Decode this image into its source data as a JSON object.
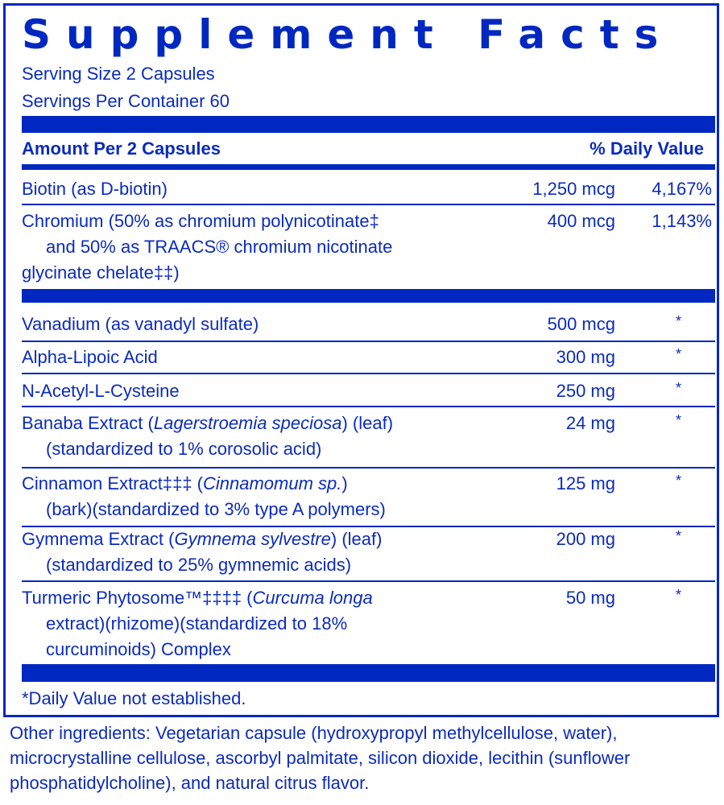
{
  "title": "Supplement Facts",
  "serving_size": "Serving Size 2 Capsules",
  "servings_per_container": "Servings Per Container 60",
  "header": {
    "amount": "Amount Per 2 Capsules",
    "dv": "% Daily Value"
  },
  "colors": {
    "label_blue": "#0028c0"
  },
  "rows": [
    {
      "l1": "Biotin (as D-biotin)",
      "amount": "1,250 mcg",
      "dv": "4,167%"
    },
    {
      "l1": "Chromium (50% as chromium polynicotinate‡",
      "l2": "and 50% as TRAACS® chromium nicotinate",
      "l3": "glycinate chelate‡‡)",
      "amount": "400 mcg",
      "dv": "1,143%"
    },
    {
      "l1": "Vanadium (as vanadyl sulfate)",
      "amount": "500 mcg",
      "dv": "*"
    },
    {
      "l1": "Alpha-Lipoic Acid",
      "amount": "300 mg",
      "dv": "*"
    },
    {
      "l1": "N-Acetyl-L-Cysteine",
      "amount": "250 mg",
      "dv": "*"
    },
    {
      "l1a": "Banaba Extract (",
      "l1i": "Lagerstroemia speciosa",
      "l1b": ") (leaf)",
      "l2": "(standardized to 1% corosolic acid)",
      "amount": "24 mg",
      "dv": "*"
    },
    {
      "l1a": "Cinnamon Extract‡‡‡ (",
      "l1i": "Cinnamomum sp.",
      "l1b": ")",
      "l2": "(bark)(standardized to 3% type A polymers)",
      "amount": "125 mg",
      "dv": "*"
    },
    {
      "l1a": "Gymnema Extract (",
      "l1i": "Gymnema sylvestre",
      "l1b": ") (leaf)",
      "l2": "(standardized to 25% gymnemic acids)",
      "amount": "200 mg",
      "dv": "*"
    },
    {
      "l1a": "Turmeric Phytosome™‡‡‡‡ (",
      "l1i": "Curcuma longa",
      "l1b": "",
      "l2": "extract)(rhizome)(standardized to 18%",
      "l3": "curcuminoids) Complex",
      "amount": "50 mg",
      "dv": "*"
    }
  ],
  "footnote": "*Daily Value not established.",
  "other_ingredients": "Other ingredients: Vegetarian capsule (hydroxypropyl methylcellulose, water), microcrystalline cellulose, ascorbyl palmitate, silicon dioxide, lecithin (sunflower phosphatidylcholine), and natural citrus flavor."
}
